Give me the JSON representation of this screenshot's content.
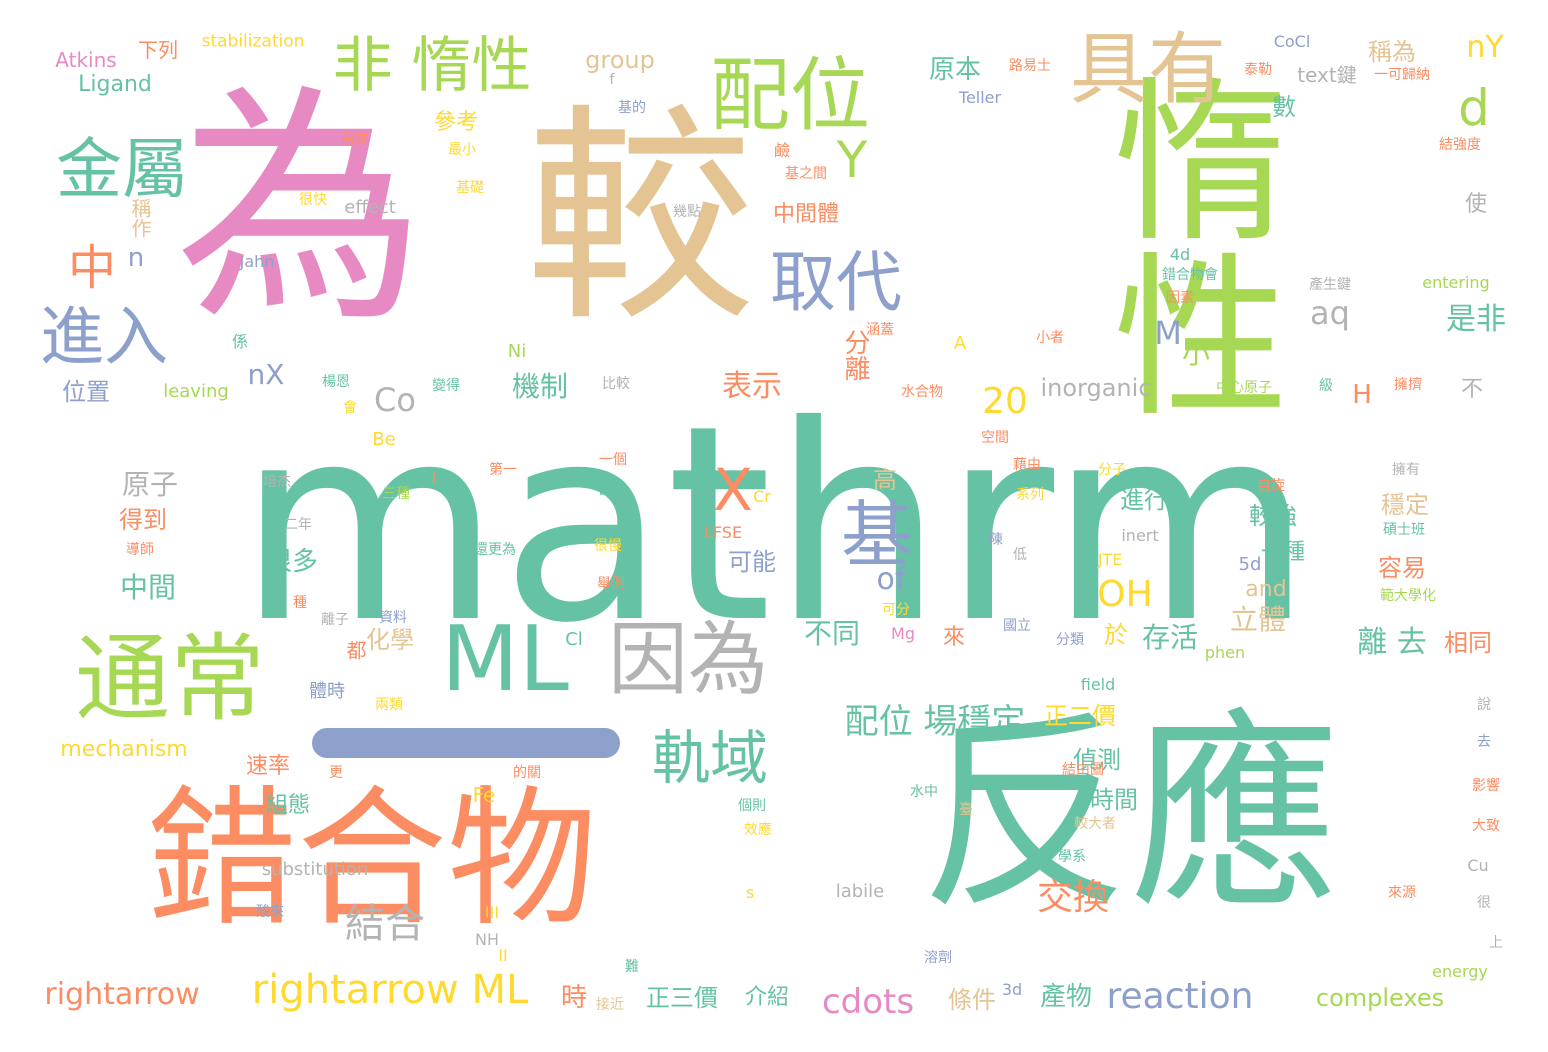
{
  "palette": {
    "teal": "#66c2a5",
    "orange": "#fc8d62",
    "periwinkle": "#8da0cb",
    "pink": "#e78ac3",
    "lime": "#a6d854",
    "yellow": "#ffd92f",
    "tan": "#e5c494",
    "gray": "#b3b3b3"
  },
  "words": [
    {
      "text": "mathrm",
      "color": "teal"
    },
    {
      "text": "惰性",
      "color": "lime"
    },
    {
      "text": "為",
      "color": "pink"
    },
    {
      "text": "較",
      "color": "tan"
    },
    {
      "text": "反應",
      "color": "teal"
    },
    {
      "text": "錯合物",
      "color": "orange"
    },
    {
      "text": "通常",
      "color": "lime"
    },
    {
      "text": "ML",
      "color": "teal"
    },
    {
      "text": "因為",
      "color": "gray"
    },
    {
      "text": "配位",
      "color": "lime"
    },
    {
      "text": "具有",
      "color": "tan"
    },
    {
      "text": "非 惰性",
      "color": "lime"
    },
    {
      "text": "金屬",
      "color": "teal"
    },
    {
      "text": "取代",
      "color": "periwinkle"
    },
    {
      "text": "進入",
      "color": "periwinkle"
    },
    {
      "text": "軌域",
      "color": "teal"
    },
    {
      "text": "基",
      "color": "periwinkle"
    },
    {
      "text": "X",
      "color": "orange"
    },
    {
      "text": "Y",
      "color": "lime"
    },
    {
      "text": "d",
      "color": "lime"
    },
    {
      "text": "中",
      "color": "orange"
    },
    {
      "text": "rightarrow ML",
      "color": "yellow"
    },
    {
      "text": "rightarrow",
      "color": "orange"
    },
    {
      "text": "reaction",
      "color": "periwinkle"
    },
    {
      "text": "cdots",
      "color": "pink"
    },
    {
      "text": "結合",
      "color": "gray"
    },
    {
      "text": "配位 場穩定",
      "color": "teal"
    },
    {
      "text": "OH",
      "color": "yellow"
    },
    {
      "text": "交換",
      "color": "orange"
    },
    {
      "text": "20",
      "color": "yellow"
    },
    {
      "text": "Co",
      "color": "gray"
    },
    {
      "text": "aq",
      "color": "gray"
    },
    {
      "text": "M",
      "color": "periwinkle"
    },
    {
      "text": "是非",
      "color": "teal"
    },
    {
      "text": "nY",
      "color": "yellow"
    },
    {
      "text": "機制",
      "color": "teal"
    },
    {
      "text": "表示",
      "color": "orange"
    },
    {
      "text": "分離",
      "color": "orange"
    },
    {
      "text": "小",
      "color": "lime"
    },
    {
      "text": "原子",
      "color": "gray"
    },
    {
      "text": "中間",
      "color": "teal"
    },
    {
      "text": "位置",
      "color": "periwinkle"
    },
    {
      "text": "nX",
      "color": "periwinkle"
    },
    {
      "text": "n",
      "color": "periwinkle"
    },
    {
      "text": "原本",
      "color": "teal"
    },
    {
      "text": "參考",
      "color": "yellow"
    },
    {
      "text": "數",
      "color": "teal"
    },
    {
      "text": "中間體",
      "color": "orange"
    },
    {
      "text": "稱為",
      "color": "tan"
    },
    {
      "text": "離 去",
      "color": "teal"
    },
    {
      "text": "相同",
      "color": "orange"
    },
    {
      "text": "立體",
      "color": "tan"
    },
    {
      "text": "於",
      "color": "yellow"
    },
    {
      "text": "存活",
      "color": "teal"
    },
    {
      "text": "of",
      "color": "periwinkle"
    },
    {
      "text": "不同",
      "color": "teal"
    },
    {
      "text": "正二價",
      "color": "yellow"
    },
    {
      "text": "偵測",
      "color": "teal"
    },
    {
      "text": "時間",
      "color": "teal"
    },
    {
      "text": "進行",
      "color": "teal"
    },
    {
      "text": "較強",
      "color": "teal"
    },
    {
      "text": "穩定",
      "color": "tan"
    },
    {
      "text": "容易",
      "color": "orange"
    },
    {
      "text": "得到",
      "color": "orange"
    },
    {
      "text": "很多",
      "color": "teal"
    },
    {
      "text": "可能",
      "color": "periwinkle"
    },
    {
      "text": "高",
      "color": "tan"
    },
    {
      "text": "正三價",
      "color": "teal"
    },
    {
      "text": "介紹",
      "color": "teal"
    },
    {
      "text": "條件",
      "color": "tan"
    },
    {
      "text": "產物",
      "color": "teal"
    },
    {
      "text": "時",
      "color": "orange"
    },
    {
      "text": "complexes",
      "color": "lime"
    },
    {
      "text": "mechanism",
      "color": "yellow"
    },
    {
      "text": "inorganic",
      "color": "gray"
    },
    {
      "text": "group",
      "color": "tan"
    },
    {
      "text": "Ligand",
      "color": "teal"
    },
    {
      "text": "Atkins",
      "color": "pink"
    },
    {
      "text": "下列",
      "color": "orange"
    },
    {
      "text": "stabilization",
      "color": "yellow"
    },
    {
      "text": "text鍵",
      "color": "gray"
    },
    {
      "text": "H",
      "color": "orange"
    },
    {
      "text": "不",
      "color": "gray"
    },
    {
      "text": "使",
      "color": "gray"
    },
    {
      "text": "組態",
      "color": "teal"
    },
    {
      "text": "速率",
      "color": "orange"
    },
    {
      "text": "體時",
      "color": "periwinkle"
    },
    {
      "text": "化學",
      "color": "tan"
    },
    {
      "text": "都",
      "color": "orange"
    },
    {
      "text": "Fe",
      "color": "yellow"
    },
    {
      "text": "substitution",
      "color": "gray"
    },
    {
      "text": "labile",
      "color": "gray"
    },
    {
      "text": "and",
      "color": "tan"
    },
    {
      "text": "5d",
      "color": "periwinkle"
    },
    {
      "text": "一種",
      "color": "teal"
    },
    {
      "text": "稱作",
      "color": "tan"
    },
    {
      "text": "effect",
      "color": "gray"
    },
    {
      "text": "很快",
      "color": "yellow"
    },
    {
      "text": "基礎",
      "color": "yellow"
    },
    {
      "text": "最小",
      "color": "yellow"
    },
    {
      "text": "再來",
      "color": "orange"
    },
    {
      "text": "Jahn",
      "color": "periwinkle"
    },
    {
      "text": "係",
      "color": "teal"
    },
    {
      "text": "leaving",
      "color": "lime"
    },
    {
      "text": "楊恩",
      "color": "teal"
    },
    {
      "text": "會",
      "color": "yellow"
    },
    {
      "text": "Ni",
      "color": "lime"
    },
    {
      "text": "Be",
      "color": "yellow"
    },
    {
      "text": "變得",
      "color": "teal"
    },
    {
      "text": "比較",
      "color": "gray"
    },
    {
      "text": "鹼",
      "color": "orange"
    },
    {
      "text": "基之間",
      "color": "orange"
    },
    {
      "text": "幾點",
      "color": "gray"
    },
    {
      "text": "基的",
      "color": "periwinkle"
    },
    {
      "text": "f",
      "color": "gray"
    },
    {
      "text": "Teller",
      "color": "periwinkle"
    },
    {
      "text": "路易士",
      "color": "orange"
    },
    {
      "text": "CoCl",
      "color": "periwinkle"
    },
    {
      "text": "泰勒",
      "color": "orange"
    },
    {
      "text": "一可歸納",
      "color": "orange"
    },
    {
      "text": "結強度",
      "color": "orange"
    },
    {
      "text": "entering",
      "color": "lime"
    },
    {
      "text": "產生鍵",
      "color": "gray"
    },
    {
      "text": "4d",
      "color": "teal"
    },
    {
      "text": "錯合物會",
      "color": "teal"
    },
    {
      "text": "因素",
      "color": "orange"
    },
    {
      "text": "小者",
      "color": "orange"
    },
    {
      "text": "A",
      "color": "yellow"
    },
    {
      "text": "涵蓋",
      "color": "orange"
    },
    {
      "text": "中心原子",
      "color": "lime"
    },
    {
      "text": "級",
      "color": "teal"
    },
    {
      "text": "擁擠",
      "color": "orange"
    },
    {
      "text": "水合物",
      "color": "orange"
    },
    {
      "text": "空間",
      "color": "orange"
    },
    {
      "text": "藉由",
      "color": "orange"
    },
    {
      "text": "系列",
      "color": "yellow"
    },
    {
      "text": "分子",
      "color": "yellow"
    },
    {
      "text": "自旋",
      "color": "orange"
    },
    {
      "text": "擁有",
      "color": "gray"
    },
    {
      "text": "碩士班",
      "color": "teal"
    },
    {
      "text": "陳",
      "color": "periwinkle"
    },
    {
      "text": "低",
      "color": "gray"
    },
    {
      "text": "inert",
      "color": "gray"
    },
    {
      "text": "JTE",
      "color": "yellow"
    },
    {
      "text": "LFSE",
      "color": "orange"
    },
    {
      "text": "Cr",
      "color": "yellow"
    },
    {
      "text": "第一",
      "color": "orange"
    },
    {
      "text": "一個",
      "color": "orange"
    },
    {
      "text": "圖一",
      "color": "teal"
    },
    {
      "text": "I",
      "color": "orange"
    },
    {
      "text": "三種",
      "color": "lime"
    },
    {
      "text": "培杰",
      "color": "gray"
    },
    {
      "text": "二年",
      "color": "gray"
    },
    {
      "text": "還更為",
      "color": "teal"
    },
    {
      "text": "很慢",
      "color": "yellow"
    },
    {
      "text": "舉例",
      "color": "orange"
    },
    {
      "text": "導師",
      "color": "orange"
    },
    {
      "text": "種",
      "color": "orange"
    },
    {
      "text": "資料",
      "color": "periwinkle"
    },
    {
      "text": "離子",
      "color": "gray"
    },
    {
      "text": "Cl",
      "color": "teal"
    },
    {
      "text": "可分",
      "color": "yellow"
    },
    {
      "text": "Mg",
      "color": "pink"
    },
    {
      "text": "來",
      "color": "orange"
    },
    {
      "text": "國立",
      "color": "periwinkle"
    },
    {
      "text": "分類",
      "color": "periwinkle"
    },
    {
      "text": "phen",
      "color": "lime"
    },
    {
      "text": "field",
      "color": "teal"
    },
    {
      "text": "範大學化",
      "color": "lime"
    },
    {
      "text": "兩類",
      "color": "yellow"
    },
    {
      "text": "更",
      "color": "orange"
    },
    {
      "text": "的關",
      "color": "orange"
    },
    {
      "text": "結由圖",
      "color": "orange"
    },
    {
      "text": "個則",
      "color": "teal"
    },
    {
      "text": "效應",
      "color": "yellow"
    },
    {
      "text": "水中",
      "color": "teal"
    },
    {
      "text": "臺",
      "color": "tan"
    },
    {
      "text": "較大者",
      "color": "tan"
    },
    {
      "text": "學系",
      "color": "teal"
    },
    {
      "text": "說",
      "color": "gray"
    },
    {
      "text": "去",
      "color": "periwinkle"
    },
    {
      "text": "影響",
      "color": "orange"
    },
    {
      "text": "大致",
      "color": "orange"
    },
    {
      "text": "Cu",
      "color": "gray"
    },
    {
      "text": "很",
      "color": "gray"
    },
    {
      "text": "上",
      "color": "gray"
    },
    {
      "text": "來源",
      "color": "orange"
    },
    {
      "text": "energy",
      "color": "lime"
    },
    {
      "text": "3d",
      "color": "periwinkle"
    },
    {
      "text": "溶劑",
      "color": "periwinkle"
    },
    {
      "text": "難",
      "color": "teal"
    },
    {
      "text": "接近",
      "color": "tan"
    },
    {
      "text": "s",
      "color": "yellow"
    },
    {
      "text": "III",
      "color": "yellow"
    },
    {
      "text": "NH",
      "color": "gray"
    },
    {
      "text": "II",
      "color": "yellow"
    },
    {
      "text": "酸來",
      "color": "periwinkle"
    },
    {
      "text": "",
      "color": "periwinkle"
    }
  ]
}
